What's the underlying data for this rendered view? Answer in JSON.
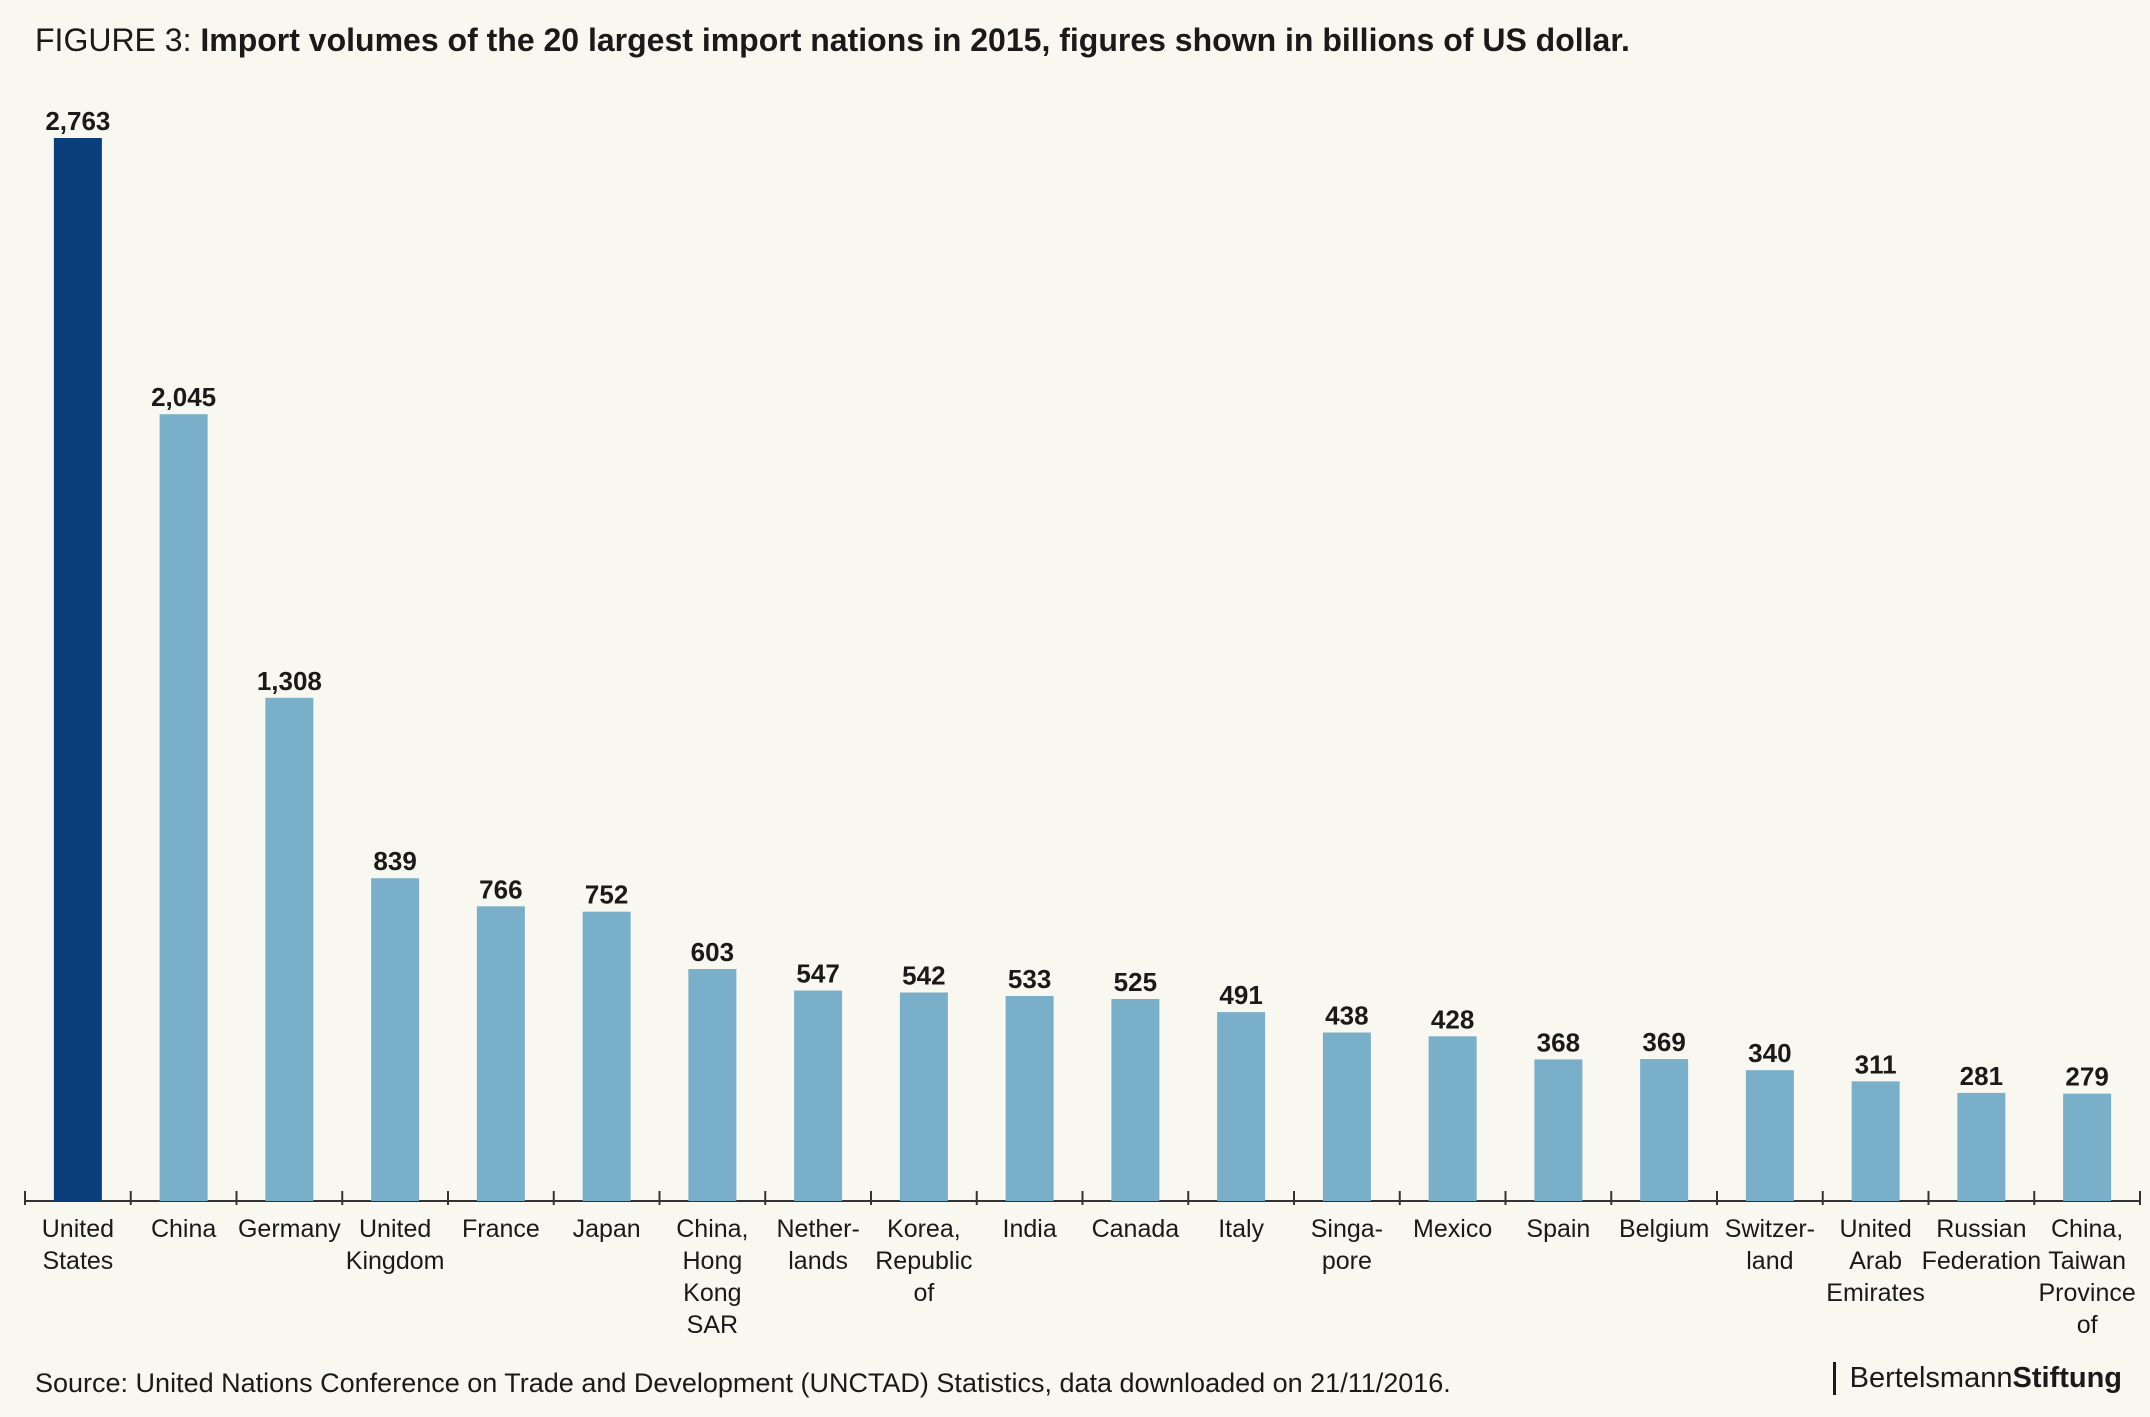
{
  "title_prefix": "FIGURE 3:",
  "title_main": "Import volumes of the 20 largest import nations in 2015, figures shown in billions of US dollar.",
  "source": "Source: United Nations Conference on Trade and Development (UNCTAD) Statistics, data downloaded on 21/11/2016.",
  "logo": {
    "part1": "Bertelsmann",
    "part2": "Stiftung"
  },
  "colors": {
    "highlight": "#0b3f7c",
    "bar": "#7aafca",
    "axis": "#333333"
  },
  "chart_data": {
    "type": "bar",
    "categories": [
      [
        "United",
        "States"
      ],
      [
        "China"
      ],
      [
        "Germany"
      ],
      [
        "United",
        "Kingdom"
      ],
      [
        "France"
      ],
      [
        "Japan"
      ],
      [
        "China,",
        "Hong",
        "Kong",
        "SAR"
      ],
      [
        "Nether-",
        "lands"
      ],
      [
        "Korea,",
        "Republic",
        "of"
      ],
      [
        "India"
      ],
      [
        "Canada"
      ],
      [
        "Italy"
      ],
      [
        "Singa-",
        "pore"
      ],
      [
        "Mexico"
      ],
      [
        "Spain"
      ],
      [
        "Belgium"
      ],
      [
        "Switzer-",
        "land"
      ],
      [
        "United",
        "Arab",
        "Emirates"
      ],
      [
        "Russian",
        "Federation"
      ],
      [
        "China,",
        "Taiwan",
        "Province",
        "of"
      ]
    ],
    "values": [
      2763,
      2045,
      1308,
      839,
      766,
      752,
      603,
      547,
      542,
      533,
      525,
      491,
      438,
      428,
      368,
      369,
      340,
      311,
      281,
      279
    ],
    "labels": [
      "2,763",
      "2,045",
      "1,308",
      "839",
      "766",
      "752",
      "603",
      "547",
      "542",
      "533",
      "525",
      "491",
      "438",
      "428",
      "368",
      "369",
      "340",
      "311",
      "281",
      "279"
    ],
    "highlight_index": 0,
    "ylim": [
      0,
      2763
    ],
    "grid": false,
    "legend": "none"
  }
}
